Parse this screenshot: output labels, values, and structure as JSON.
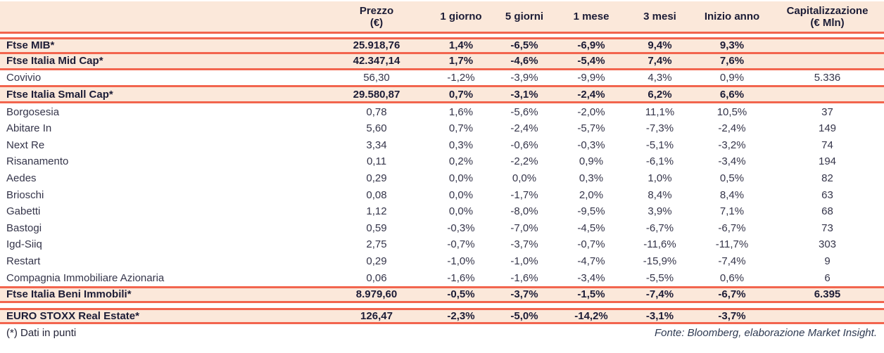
{
  "table": {
    "columns": [
      {
        "label": ""
      },
      {
        "label": "Prezzo\n(€)"
      },
      {
        "label": "1 giorno"
      },
      {
        "label": "5 giorni"
      },
      {
        "label": "1 mese"
      },
      {
        "label": "3 mesi"
      },
      {
        "label": "Inizio anno"
      },
      {
        "label": "Capitalizzazione\n(€ Mln)"
      }
    ],
    "rows": [
      {
        "label": "Ftse MIB*",
        "cells": [
          "25.918,76",
          "1,4%",
          "-6,5%",
          "-6,9%",
          "9,4%",
          "9,3%",
          ""
        ],
        "emphasis": true,
        "line_top": true,
        "line_bottom": true
      },
      {
        "label": "Ftse Italia Mid Cap*",
        "cells": [
          "42.347,14",
          "1,7%",
          "-4,6%",
          "-5,4%",
          "7,4%",
          "7,6%",
          ""
        ],
        "emphasis": true,
        "line_bottom": true
      },
      {
        "label": "Covivio",
        "cells": [
          "56,30",
          "-1,2%",
          "-3,9%",
          "-9,9%",
          "4,3%",
          "0,9%",
          "5.336"
        ],
        "line_bottom": true
      },
      {
        "label": "Ftse Italia Small Cap*",
        "cells": [
          "29.580,87",
          "0,7%",
          "-3,1%",
          "-2,4%",
          "6,2%",
          "6,6%",
          ""
        ],
        "emphasis": true,
        "line_bottom": true
      },
      {
        "label": "Borgosesia",
        "cells": [
          "0,78",
          "1,6%",
          "-5,6%",
          "-2,0%",
          "11,1%",
          "10,5%",
          "37"
        ]
      },
      {
        "label": "Abitare In",
        "cells": [
          "5,60",
          "0,7%",
          "-2,4%",
          "-5,7%",
          "-7,3%",
          "-2,4%",
          "149"
        ]
      },
      {
        "label": "Next Re",
        "cells": [
          "3,34",
          "0,3%",
          "-0,6%",
          "-0,3%",
          "-5,1%",
          "-3,2%",
          "74"
        ]
      },
      {
        "label": "Risanamento",
        "cells": [
          "0,11",
          "0,2%",
          "-2,2%",
          "0,9%",
          "-6,1%",
          "-3,4%",
          "194"
        ]
      },
      {
        "label": "Aedes",
        "cells": [
          "0,29",
          "0,0%",
          "0,0%",
          "0,3%",
          "1,0%",
          "0,5%",
          "82"
        ]
      },
      {
        "label": "Brioschi",
        "cells": [
          "0,08",
          "0,0%",
          "-1,7%",
          "2,0%",
          "8,4%",
          "8,4%",
          "63"
        ]
      },
      {
        "label": "Gabetti",
        "cells": [
          "1,12",
          "0,0%",
          "-8,0%",
          "-9,5%",
          "3,9%",
          "7,1%",
          "68"
        ]
      },
      {
        "label": "Bastogi",
        "cells": [
          "0,59",
          "-0,3%",
          "-7,0%",
          "-4,5%",
          "-6,7%",
          "-6,7%",
          "73"
        ]
      },
      {
        "label": "Igd-Siiq",
        "cells": [
          "2,75",
          "-0,7%",
          "-3,7%",
          "-0,7%",
          "-11,6%",
          "-11,7%",
          "303"
        ]
      },
      {
        "label": "Restart",
        "cells": [
          "0,29",
          "-1,0%",
          "-1,0%",
          "-4,7%",
          "-15,9%",
          "-7,4%",
          "9"
        ]
      },
      {
        "label": "Compagnia Immobiliare Azionaria",
        "cells": [
          "0,06",
          "-1,6%",
          "-1,6%",
          "-3,4%",
          "-5,5%",
          "0,6%",
          "6"
        ]
      },
      {
        "label": "Ftse Italia Beni Immobili*",
        "cells": [
          "8.979,60",
          "-0,5%",
          "-3,7%",
          "-1,5%",
          "-7,4%",
          "-6,7%",
          "6.395"
        ],
        "emphasis": true,
        "line_top": true,
        "line_bottom": true,
        "gap_after": true
      },
      {
        "label": "EURO STOXX Real Estate*",
        "cells": [
          "126,47",
          "-2,3%",
          "-5,0%",
          "-14,2%",
          "-3,1%",
          "-3,7%",
          ""
        ],
        "emphasis": true,
        "line_top": true,
        "line_bottom": true
      }
    ]
  },
  "footer": {
    "note": "(*) Dati in punti",
    "source": "Fonte: Bloomberg, elaborazione Market Insight."
  },
  "colors": {
    "accent_line": "#f2654e",
    "row_highlight": "#fbe8da",
    "text_emphasis": "#1c1c36",
    "text_regular": "#35354a"
  }
}
